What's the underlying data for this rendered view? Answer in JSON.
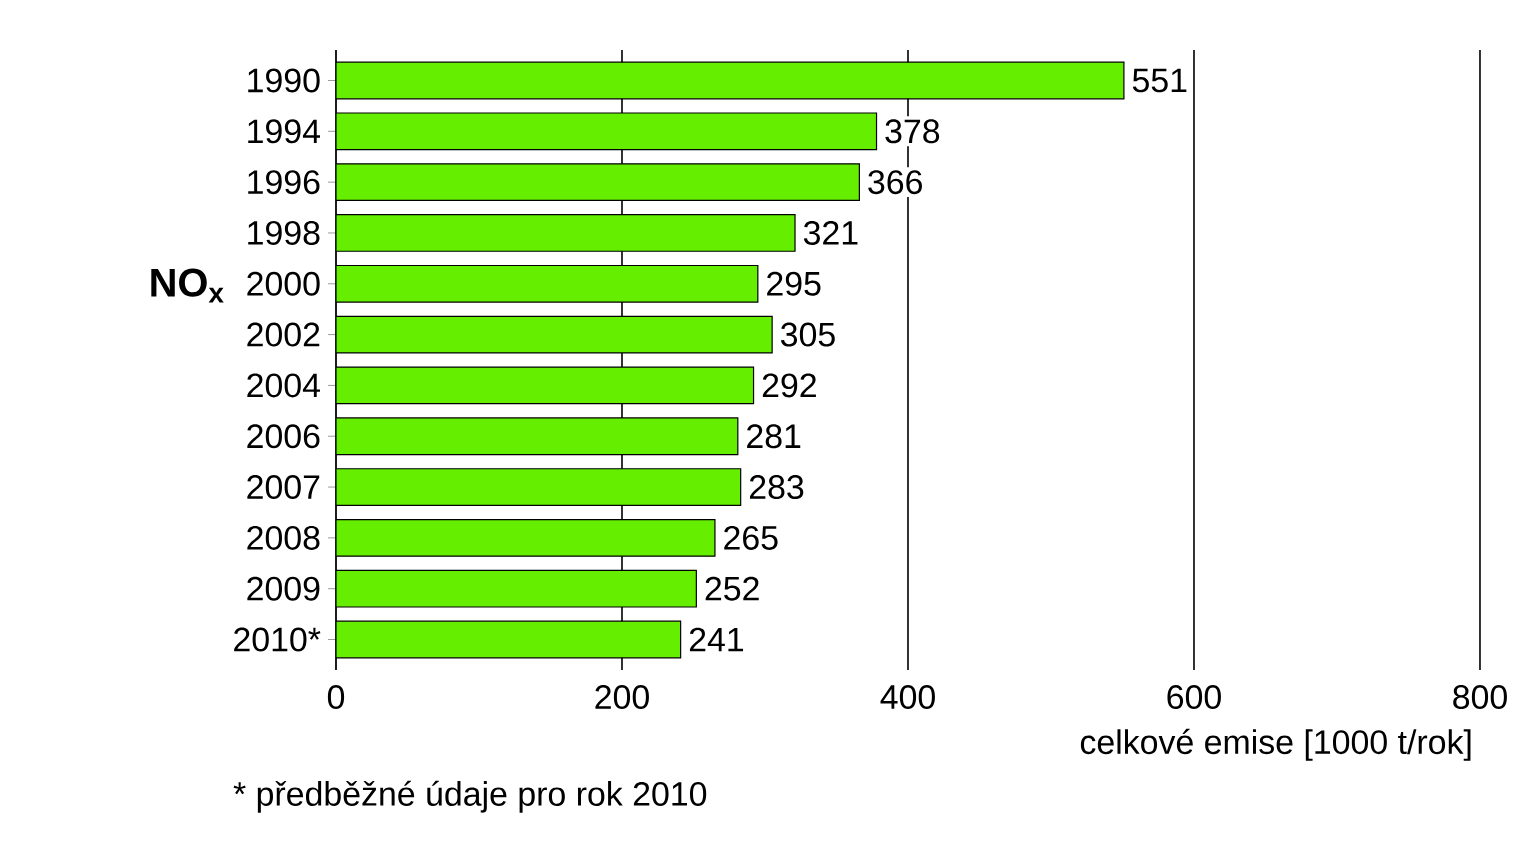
{
  "chart_data": {
    "type": "bar",
    "orientation": "horizontal",
    "ylabel": "NO$_{x}$",
    "xlabel": "celkové emise [1000 t/rok]",
    "categories": [
      "1990",
      "1994",
      "1996",
      "1998",
      "2000",
      "2002",
      "2004",
      "2006",
      "2007",
      "2008",
      "2009",
      "2010*"
    ],
    "values": [
      551,
      378,
      366,
      321,
      295,
      305,
      292,
      281,
      283,
      265,
      252,
      241
    ],
    "color": "#66ee00",
    "data_labels": true,
    "grid": "x",
    "xlim": [
      0,
      800
    ],
    "xticks": [
      0,
      200,
      400,
      600,
      800
    ],
    "annotations": [
      "*   předběžné údaje pro rok 2010"
    ]
  }
}
